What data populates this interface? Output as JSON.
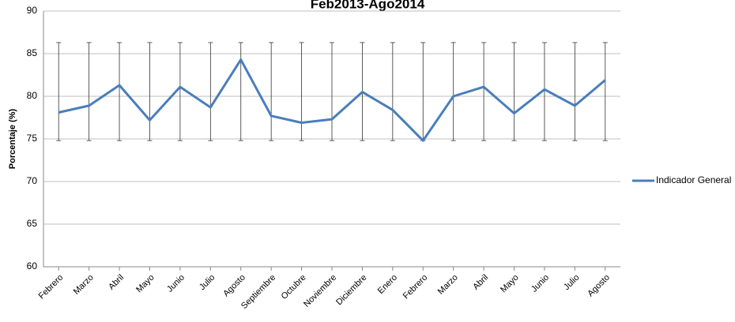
{
  "chart_data": {
    "type": "line",
    "title": "Feb2013-Ago2014",
    "categories": [
      "Febrero",
      "Marzo",
      "Abril",
      "Mayo",
      "Junio",
      "Julio",
      "Agosto",
      "Septiembre",
      "Octubre",
      "Noviembre",
      "Diciembre",
      "Enero",
      "Febrero",
      "Marzo",
      "Abril",
      "Mayo",
      "Junio",
      "Julio",
      "Agosto"
    ],
    "series": [
      {
        "name": "Indicador General",
        "color": "#4a7ebb",
        "values": [
          78.1,
          78.9,
          81.3,
          77.2,
          81.1,
          78.7,
          84.3,
          77.7,
          76.9,
          77.3,
          80.5,
          78.4,
          74.8,
          80.0,
          81.1,
          78.0,
          80.8,
          78.9,
          81.9
        ],
        "high": [
          86.3,
          86.3,
          86.3,
          86.3,
          86.3,
          86.3,
          86.3,
          86.3,
          86.3,
          86.3,
          86.3,
          86.3,
          86.3,
          86.3,
          86.3,
          86.3,
          86.3,
          86.3,
          86.3
        ],
        "low": [
          74.8,
          74.8,
          74.8,
          74.8,
          74.8,
          74.8,
          74.8,
          74.8,
          74.8,
          74.8,
          74.8,
          74.8,
          74.8,
          74.8,
          74.8,
          74.8,
          74.8,
          74.8,
          74.8
        ]
      }
    ],
    "ylabel": "Porcentaje (%)",
    "ylim": [
      60,
      90
    ],
    "yticks": [
      60,
      65,
      70,
      75,
      80,
      85,
      90
    ],
    "grid": true,
    "legend": "right"
  }
}
